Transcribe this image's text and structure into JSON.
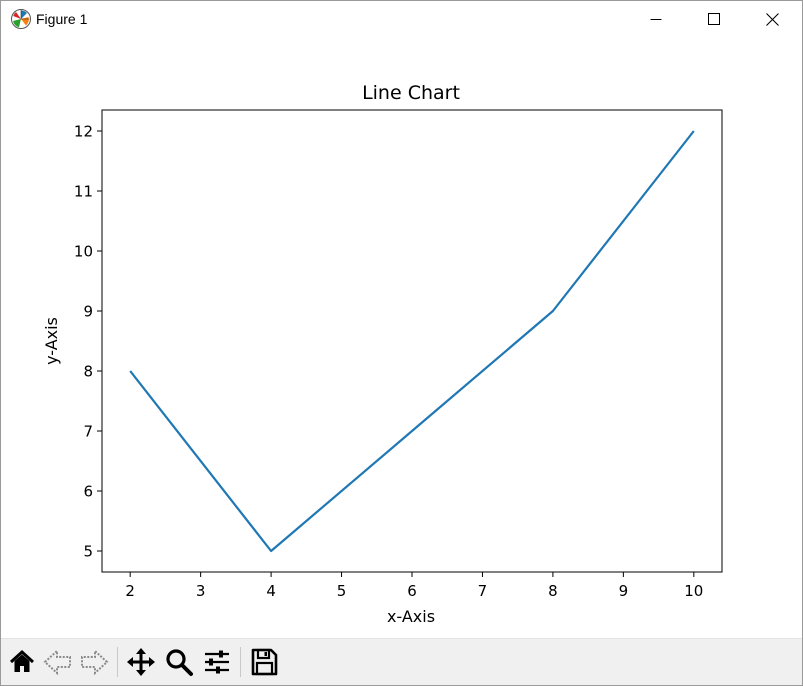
{
  "window": {
    "title": "Figure 1",
    "icons": {
      "app": "matplotlib-icon",
      "minimize": "minimize-icon",
      "maximize": "maximize-icon",
      "close": "close-icon"
    }
  },
  "toolbar": {
    "buttons": [
      {
        "name": "home",
        "icon": "home-icon"
      },
      {
        "name": "back",
        "icon": "back-arrow-icon"
      },
      {
        "name": "forward",
        "icon": "forward-arrow-icon"
      },
      {
        "name": "pan",
        "icon": "pan-move-icon"
      },
      {
        "name": "zoom",
        "icon": "zoom-magnifier-icon"
      },
      {
        "name": "configure-subplots",
        "icon": "sliders-icon"
      },
      {
        "name": "save",
        "icon": "save-floppy-icon"
      }
    ]
  },
  "chart_data": {
    "type": "line",
    "title": "Line Chart",
    "xlabel": "x-Axis",
    "ylabel": "y-Axis",
    "x": [
      2,
      4,
      6,
      8,
      10
    ],
    "series": [
      {
        "values": [
          8,
          5,
          7,
          9,
          12
        ],
        "color": "#1f77b4"
      }
    ],
    "xlim": [
      1.6,
      10.4
    ],
    "ylim": [
      4.65,
      12.35
    ],
    "xticks": [
      2,
      3,
      4,
      5,
      6,
      7,
      8,
      9,
      10
    ],
    "yticks": [
      5,
      6,
      7,
      8,
      9,
      10,
      11,
      12
    ],
    "grid": false
  }
}
